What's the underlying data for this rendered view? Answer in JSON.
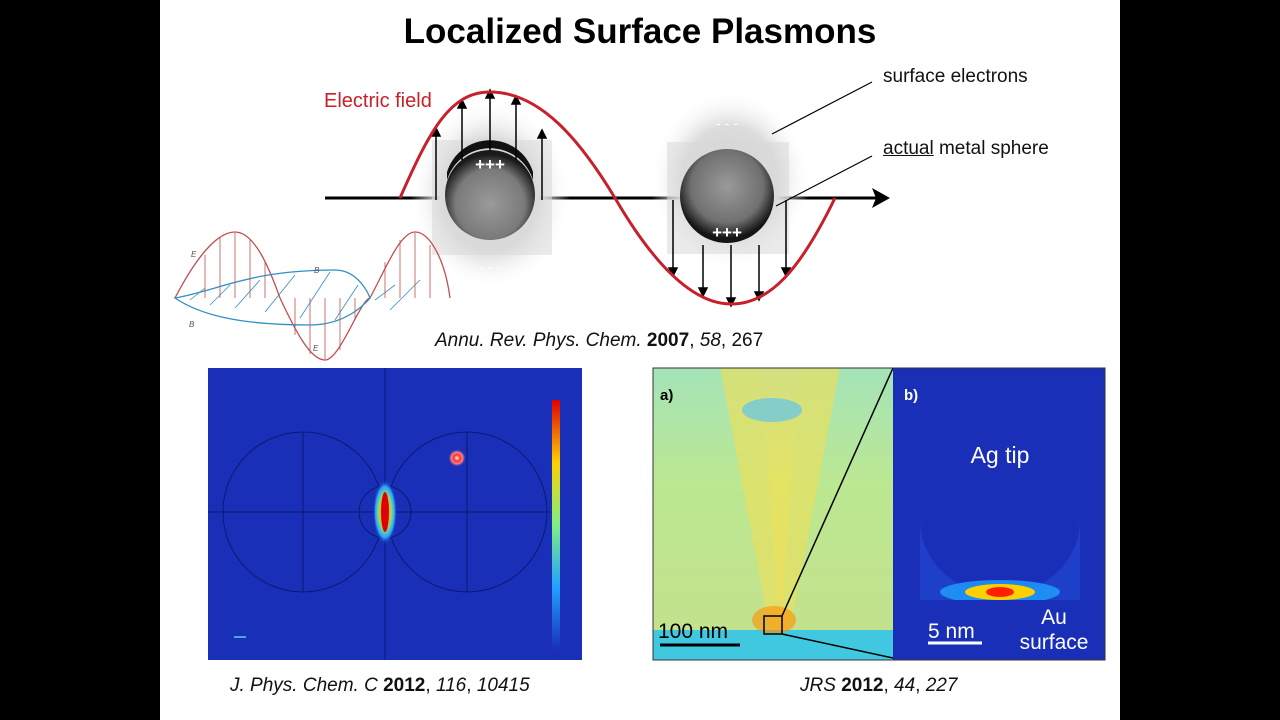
{
  "slide": {
    "title": "Localized Surface Plasmons",
    "electric_field_label": "Electric field",
    "surface_electrons_label": "surface electrons",
    "metal_sphere_label_underlined": "actual",
    "metal_sphere_label_rest": " metal sphere",
    "charges_plus": "+++",
    "charges_minus": "- - -",
    "em_wave_labels": {
      "e_top": "E",
      "b_right": "B",
      "b_left": "B",
      "e_bottom": "E"
    }
  },
  "citations": {
    "top": {
      "journal": "Annu. Rev. Phys. Chem.",
      "year": "2007",
      "volume": "58",
      "page": "267"
    },
    "left": {
      "journal": "J. Phys. Chem. C",
      "year": "2012",
      "volume": "116",
      "page": "10415"
    },
    "right": {
      "journal": "JRS",
      "year": "2012",
      "volume": "44",
      "page": "227"
    }
  },
  "sim_right": {
    "panel_a": "a)",
    "panel_b": "b)",
    "scale_a": "100 nm",
    "scale_b": "5 nm",
    "tip_label": "Ag tip",
    "surface_label_1": "Au",
    "surface_label_2": "surface"
  },
  "colors": {
    "field_line": "#c8202b",
    "sim_background": "#1a2fb8",
    "hotspot": "#ff2a00"
  }
}
